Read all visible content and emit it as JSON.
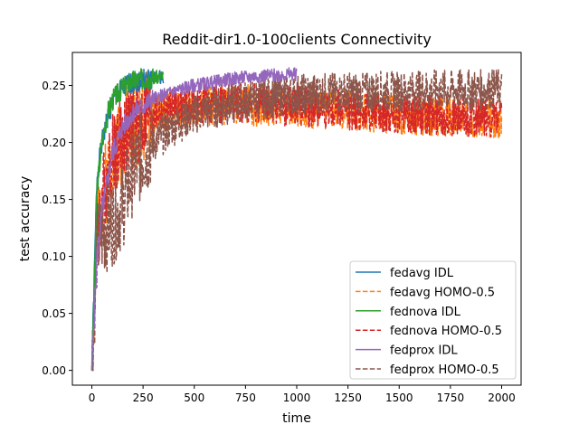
{
  "chart_data": {
    "type": "line",
    "title": "Reddit-dir1.0-100clients Connectivity",
    "xlabel": "time",
    "ylabel": "test accuracy",
    "xlim": [
      -95,
      2095
    ],
    "ylim": [
      -0.013,
      0.279
    ],
    "xticks": [
      0,
      250,
      500,
      750,
      1000,
      1250,
      1500,
      1750,
      2000
    ],
    "xtick_labels": [
      "0",
      "250",
      "500",
      "750",
      "1000",
      "1250",
      "1500",
      "1750",
      "2000"
    ],
    "yticks": [
      0.0,
      0.05,
      0.1,
      0.15,
      0.2,
      0.25
    ],
    "ytick_labels": [
      "0.00",
      "0.05",
      "0.10",
      "0.15",
      "0.20",
      "0.25"
    ],
    "grid": false,
    "legend_position": "lower-right",
    "series": [
      {
        "name": "fedavg IDL",
        "color": "#1f77b4",
        "dash": "solid",
        "x": [
          0,
          25,
          50,
          75,
          100,
          150,
          200,
          250,
          300,
          350
        ],
        "y": [
          0.0,
          0.17,
          0.2,
          0.22,
          0.235,
          0.248,
          0.253,
          0.255,
          0.256,
          0.258
        ]
      },
      {
        "name": "fedavg HOMO-0.5",
        "color": "#ff7f0e",
        "dash": "dashed",
        "x": [
          0,
          25,
          50,
          100,
          150,
          200,
          250,
          300,
          400,
          500,
          600,
          700,
          800,
          900,
          1000,
          1100,
          1200,
          1300,
          1400,
          1500,
          1600,
          1700,
          1800,
          1900,
          2000
        ],
        "y": [
          0.0,
          0.12,
          0.15,
          0.19,
          0.205,
          0.215,
          0.222,
          0.226,
          0.23,
          0.232,
          0.233,
          0.234,
          0.232,
          0.233,
          0.232,
          0.23,
          0.229,
          0.228,
          0.226,
          0.225,
          0.224,
          0.223,
          0.222,
          0.222,
          0.221
        ]
      },
      {
        "name": "fednova IDL",
        "color": "#2ca02c",
        "dash": "solid",
        "x": [
          0,
          25,
          50,
          75,
          100,
          150,
          200,
          250,
          300,
          350
        ],
        "y": [
          0.0,
          0.16,
          0.2,
          0.225,
          0.237,
          0.248,
          0.254,
          0.256,
          0.257,
          0.258
        ]
      },
      {
        "name": "fednova HOMO-0.5",
        "color": "#d62728",
        "dash": "dashed",
        "x": [
          0,
          25,
          50,
          100,
          150,
          200,
          250,
          300,
          400,
          500,
          600,
          700,
          800,
          900,
          1000,
          1100,
          1200,
          1300,
          1400,
          1500,
          1600,
          1700,
          1800,
          1900,
          2000
        ],
        "y": [
          0.0,
          0.12,
          0.15,
          0.19,
          0.205,
          0.215,
          0.222,
          0.226,
          0.23,
          0.232,
          0.234,
          0.234,
          0.234,
          0.233,
          0.232,
          0.231,
          0.229,
          0.228,
          0.227,
          0.226,
          0.225,
          0.224,
          0.223,
          0.223,
          0.222
        ]
      },
      {
        "name": "fedprox IDL",
        "color": "#9467bd",
        "dash": "solid",
        "x": [
          0,
          25,
          50,
          100,
          150,
          200,
          300,
          400,
          500,
          600,
          700,
          800,
          900,
          1000
        ],
        "y": [
          0.0,
          0.1,
          0.14,
          0.19,
          0.213,
          0.226,
          0.238,
          0.245,
          0.25,
          0.253,
          0.256,
          0.258,
          0.259,
          0.26
        ]
      },
      {
        "name": "fedprox HOMO-0.5",
        "color": "#8c564b",
        "dash": "dashed",
        "x": [
          0,
          25,
          50,
          100,
          150,
          200,
          250,
          300,
          400,
          500,
          600,
          700,
          800,
          900,
          1000,
          1100,
          1200,
          1300,
          1400,
          1500,
          1600,
          1700,
          1800,
          1900,
          2000
        ],
        "y": [
          0.0,
          0.11,
          0.12,
          0.13,
          0.145,
          0.175,
          0.19,
          0.2,
          0.215,
          0.225,
          0.23,
          0.235,
          0.238,
          0.24,
          0.242,
          0.243,
          0.244,
          0.244,
          0.245,
          0.245,
          0.246,
          0.246,
          0.246,
          0.246,
          0.247
        ]
      }
    ]
  }
}
